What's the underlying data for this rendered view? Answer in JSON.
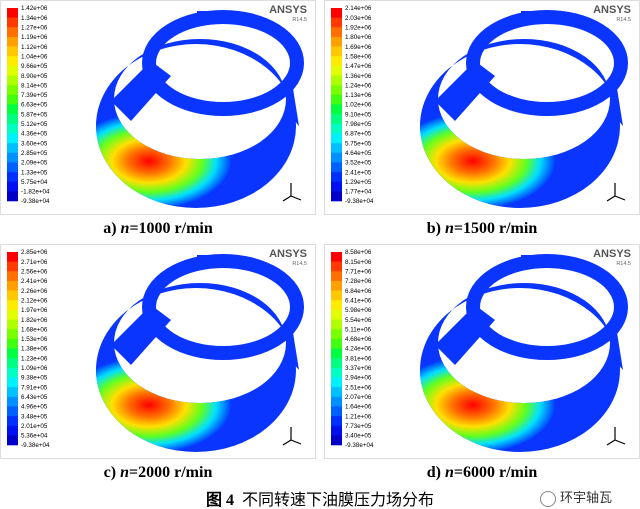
{
  "panels": [
    {
      "logo": "ANSYS",
      "version": "R14.5",
      "legend": [
        "1.42e+06",
        "1.34e+06",
        "1.27e+06",
        "1.19e+06",
        "1.12e+06",
        "1.04e+06",
        "9.66e+05",
        "8.90e+05",
        "8.14e+05",
        "7.39e+05",
        "6.63e+05",
        "5.87e+05",
        "5.12e+05",
        "4.36e+05",
        "3.60e+05",
        "2.85e+05",
        "2.09e+05",
        "1.33e+05",
        "5.75e+04",
        "-1.82e+04",
        "-9.38e+04"
      ],
      "caption": {
        "label": "a)",
        "var": "n",
        "text": "=1000 r/min"
      }
    },
    {
      "logo": "ANSYS",
      "version": "R14.5",
      "legend": [
        "2.14e+06",
        "2.03e+06",
        "1.92e+06",
        "1.80e+06",
        "1.69e+06",
        "1.58e+06",
        "1.47e+06",
        "1.36e+06",
        "1.24e+06",
        "1.13e+06",
        "1.02e+06",
        "9.10e+05",
        "7.98e+05",
        "6.87e+05",
        "5.75e+05",
        "4.64e+05",
        "3.52e+05",
        "2.41e+05",
        "1.29e+05",
        "1.77e+04",
        "-9.38e+04"
      ],
      "caption": {
        "label": "b)",
        "var": "n",
        "text": "=1500 r/min"
      }
    },
    {
      "logo": "ANSYS",
      "version": "R14.5",
      "legend": [
        "2.85e+06",
        "2.71e+06",
        "2.56e+06",
        "2.41e+06",
        "2.26e+06",
        "2.12e+06",
        "1.97e+06",
        "1.82e+06",
        "1.68e+06",
        "1.53e+06",
        "1.38e+06",
        "1.23e+06",
        "1.09e+06",
        "9.38e+05",
        "7.91e+05",
        "6.43e+05",
        "4.96e+05",
        "3.48e+05",
        "2.01e+05",
        "5.36e+04",
        "-9.38e+04"
      ],
      "caption": {
        "label": "c)",
        "var": "n",
        "text": "=2000 r/min"
      }
    },
    {
      "logo": "ANSYS",
      "version": "R14.5",
      "legend": [
        "8.58e+06",
        "8.15e+06",
        "7.71e+06",
        "7.28e+06",
        "6.84e+06",
        "6.41e+06",
        "5.98e+06",
        "5.54e+06",
        "5.11e+06",
        "4.68e+06",
        "4.24e+06",
        "3.81e+06",
        "3.37e+06",
        "2.94e+06",
        "2.51e+06",
        "2.07e+06",
        "1.64e+06",
        "1.21e+06",
        "7.73e+05",
        "3.40e+05",
        "-9.38e+04"
      ],
      "caption": {
        "label": "d)",
        "var": "n",
        "text": "=6000 r/min"
      }
    }
  ],
  "figure_caption": {
    "number": "图 4",
    "text": "不同转速下油膜压力场分布"
  },
  "watermark": "环宇轴瓦"
}
